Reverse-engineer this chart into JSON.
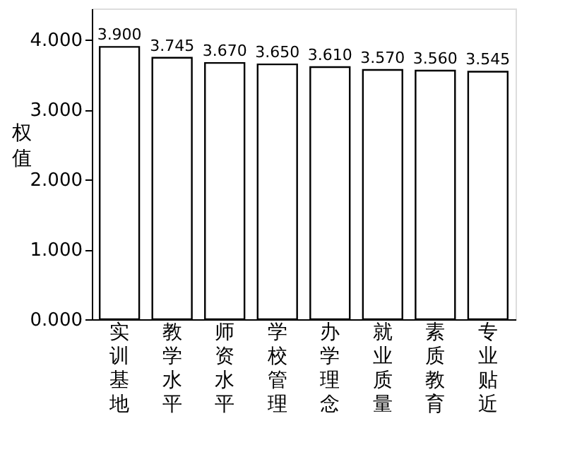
{
  "chart_data": {
    "type": "bar",
    "ylabel": "权值",
    "categories": [
      "实训基地",
      "教学水平",
      "师资水平",
      "学校管理",
      "办学理念",
      "就业质量",
      "素质教育",
      "专业贴近"
    ],
    "values": [
      3.9,
      3.745,
      3.67,
      3.65,
      3.61,
      3.57,
      3.56,
      3.545
    ],
    "value_labels": [
      "3.900",
      "3.745",
      "3.670",
      "3.650",
      "3.610",
      "3.570",
      "3.560",
      "3.545"
    ],
    "color": "#ffffff",
    "ylim": [
      0,
      4.45
    ],
    "yticks": [
      {
        "value": 0,
        "label": "0.000"
      },
      {
        "value": 1,
        "label": "1.000"
      },
      {
        "value": 2,
        "label": "2.000"
      },
      {
        "value": 3,
        "label": "3.000"
      },
      {
        "value": 4,
        "label": "4.000"
      }
    ],
    "grid": false
  }
}
